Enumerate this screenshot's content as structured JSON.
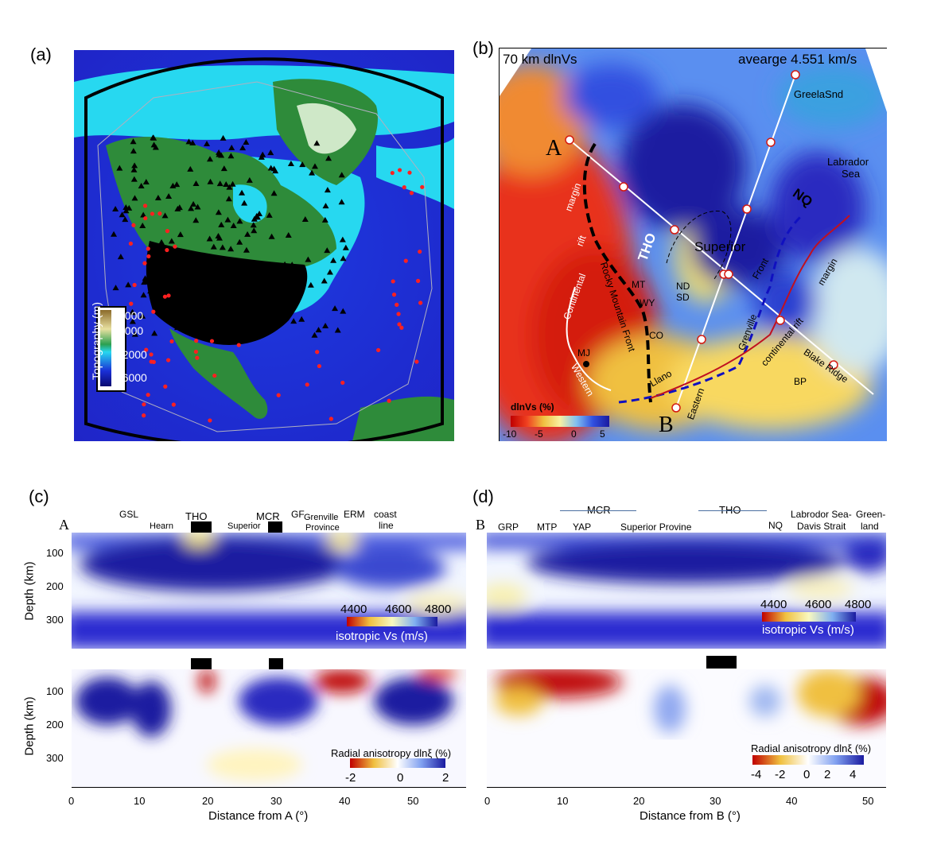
{
  "panels": {
    "a": {
      "label": "(a)",
      "colorbar": {
        "title": "Topography (m)",
        "ticks": [
          "4000",
          "2000",
          "-2000",
          "-6000"
        ]
      }
    },
    "b": {
      "label": "(b)",
      "header_left": "70 km dlnVs",
      "header_right": "avearge 4.551 km/s",
      "point_a": "A",
      "point_b": "B",
      "colorbar": {
        "title": "dlnVs (%)",
        "ticks": [
          "-10",
          "-5",
          "0",
          "5"
        ]
      },
      "map_labels": {
        "greenland": "GreelaSnd",
        "labrador": "Labrador",
        "sea": "Sea",
        "nq": "NQ",
        "tho": "THO",
        "superior": "Superior",
        "margin_left": "margin",
        "rift": "rift",
        "continental_left": "Continental",
        "rocky": "Rocky Mountain Front",
        "mt": "MT",
        "wy": "WY",
        "nd": "ND",
        "sd": "SD",
        "co": "CO",
        "mj": "MJ",
        "western": "Western",
        "llano": "Llano",
        "eastern": "Eastern",
        "grenville": "Grenville",
        "front": "Front",
        "continental_rift": "continental rift",
        "margin_right": "margin",
        "blake": "Blake Ridge",
        "bp": "BP"
      }
    },
    "c": {
      "label": "(c)",
      "start_letter": "A",
      "regions": [
        "GSL",
        "Hearn",
        "THO",
        "Superior",
        "MCR",
        "GF",
        "Grenville",
        "Province",
        "ERM",
        "coast",
        "line"
      ],
      "y_label": "Depth (km)",
      "y_ticks": [
        "100",
        "200",
        "300"
      ],
      "x_ticks": [
        "0",
        "10",
        "20",
        "30",
        "40",
        "50"
      ],
      "x_label": "Distance from A (°)",
      "vs_colorbar": {
        "title": "isotropic Vs (m/s)",
        "ticks": [
          "4400",
          "4600",
          "4800"
        ]
      },
      "aniso_colorbar": {
        "title": "Radial anisotropy dlnξ (%)",
        "ticks": [
          "-2",
          "0",
          "2"
        ]
      }
    },
    "d": {
      "label": "(d)",
      "start_letter": "B",
      "mcr": "MCR",
      "tho": "THO",
      "regions": [
        "GRP",
        "MTP",
        "YAP",
        "Superior Provine",
        "NQ",
        "Labrodor Sea-",
        "Davis Strait",
        "Green-",
        "land"
      ],
      "x_ticks": [
        "0",
        "10",
        "20",
        "30",
        "40",
        "50"
      ],
      "x_label": "Distance from B (°)",
      "vs_colorbar": {
        "title": "isotropic Vs (m/s)",
        "ticks": [
          "4400",
          "4600",
          "4800"
        ]
      },
      "aniso_colorbar": {
        "title": "Radial anisotropy dlnξ (%)",
        "ticks": [
          "-4",
          "-2",
          "0",
          "2",
          "4"
        ]
      }
    }
  },
  "colors": {
    "deep_ocean": "#1a2fd6",
    "shallow_ocean": "#27d8f0",
    "land_black": "#000000",
    "green": "#2e8b3a",
    "slow": "#d41a10",
    "fast": "#1a1aa0"
  }
}
